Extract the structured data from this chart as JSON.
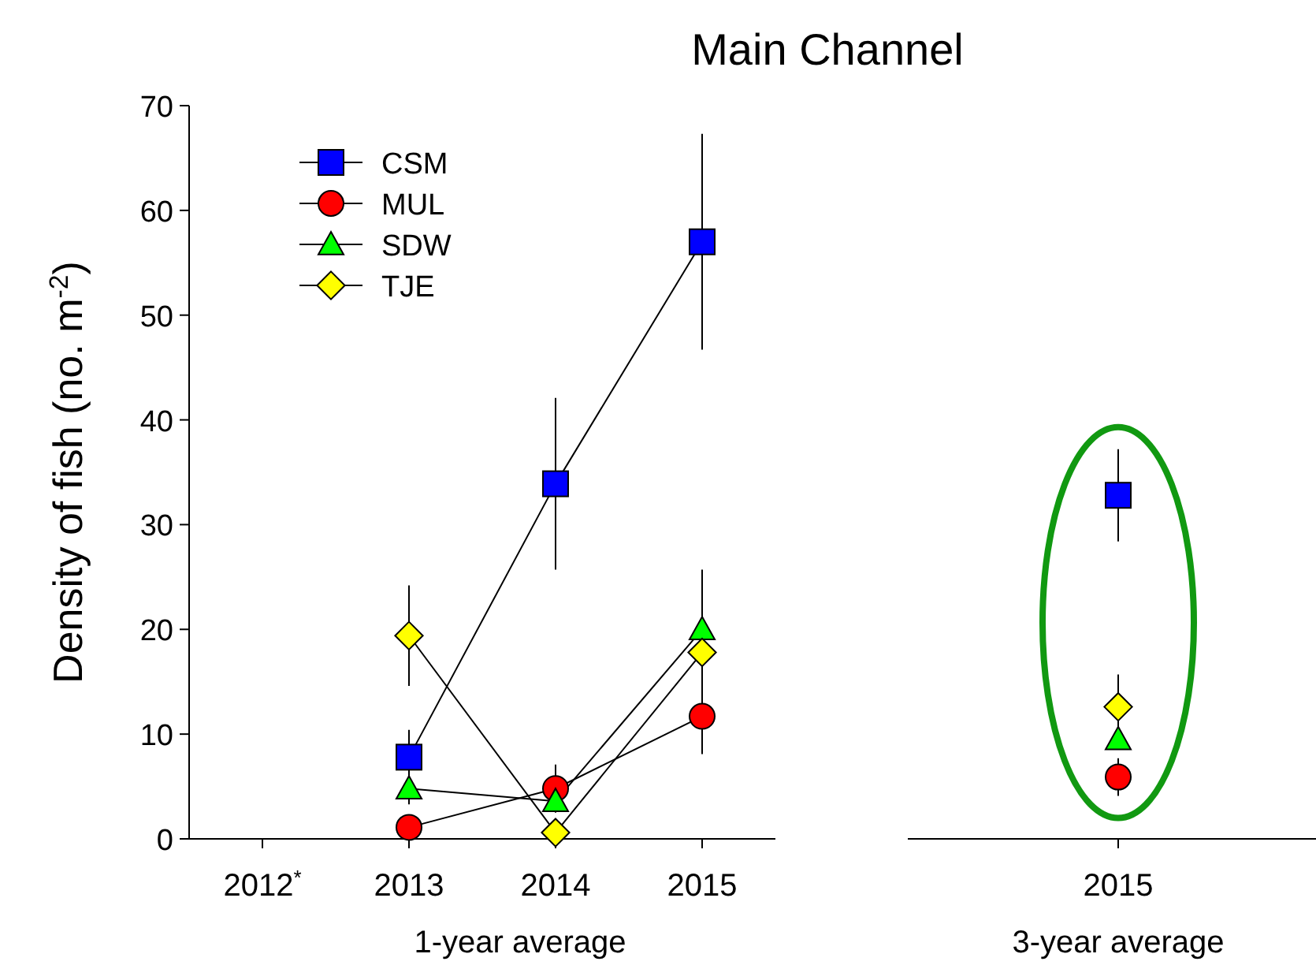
{
  "chart_data": [
    {
      "type": "line",
      "title": "Main Channel",
      "ylabel": "Density of fish (no. m$^{-2}$)",
      "xlabel": "1-year average",
      "categories": [
        "2012$^{*}$",
        "2013",
        "2014",
        "2015"
      ],
      "ylim": [
        0,
        70
      ],
      "yticks": [
        0,
        10,
        20,
        30,
        40,
        50,
        60,
        70
      ],
      "legend": "top left",
      "series": [
        {
          "name": "CSM",
          "color": "#0000ff",
          "marker": "square",
          "values": [
            null,
            7.8,
            33.9,
            57.0
          ],
          "errors": [
            null,
            2.6,
            8.2,
            10.3
          ]
        },
        {
          "name": "MUL",
          "color": "#ff0000",
          "marker": "circle",
          "values": [
            null,
            1.1,
            4.8,
            11.7
          ],
          "errors": [
            null,
            null,
            2.3,
            3.6
          ]
        },
        {
          "name": "SDW",
          "color": "#00ff00",
          "marker": "triangle",
          "values": [
            null,
            4.8,
            3.6,
            20.0
          ],
          "errors": [
            null,
            1.5,
            null,
            5.7
          ]
        },
        {
          "name": "TJE",
          "color": "#ffff00",
          "marker": "diamond",
          "values": [
            null,
            19.4,
            0.6,
            17.8
          ],
          "errors": [
            null,
            4.8,
            null,
            null
          ]
        }
      ]
    },
    {
      "type": "scatter",
      "xlabel": "3-year average",
      "categories": [
        "2015"
      ],
      "ylim": [
        0,
        70
      ],
      "tick_labels": "x",
      "series": [
        {
          "color": "#0000ff",
          "marker": "square",
          "values": [
            32.8
          ],
          "errors": [
            4.4
          ]
        },
        {
          "color": "#ff0000",
          "marker": "circle",
          "values": [
            5.9
          ],
          "errors": [
            1.8
          ]
        },
        {
          "color": "#00ff00",
          "marker": "triangle",
          "values": [
            9.5
          ],
          "errors": [
            null
          ]
        },
        {
          "color": "#ffff00",
          "marker": "diamond",
          "values": [
            12.6
          ],
          "errors": [
            3.1
          ]
        }
      ]
    }
  ]
}
